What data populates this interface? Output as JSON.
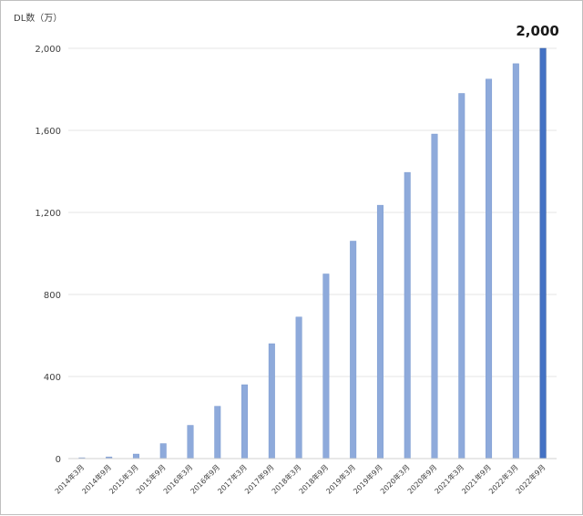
{
  "chart_data": {
    "type": "bar",
    "ylabel": "DL数（万）",
    "xlabel": "",
    "ylim": [
      0,
      2000
    ],
    "yticks": [
      0,
      400,
      800,
      1200,
      1600,
      2000
    ],
    "ytick_labels": [
      "0",
      "400",
      "800",
      "1,200",
      "1,600",
      "2,000"
    ],
    "grid": true,
    "categories": [
      "2014年3月",
      "2014年9月",
      "2015年3月",
      "2015年9月",
      "2016年3月",
      "2016年9月",
      "2017年3月",
      "2017年9月",
      "2018年3月",
      "2018年9月",
      "2019年3月",
      "2019年9月",
      "2020年3月",
      "2020年9月",
      "2021年3月",
      "2021年9月",
      "2022年3月",
      "2022年9月"
    ],
    "values": [
      4,
      8,
      22,
      73,
      162,
      255,
      360,
      560,
      690,
      900,
      1060,
      1235,
      1395,
      1582,
      1780,
      1850,
      1925,
      2000
    ],
    "bar_color": "#8eaadb",
    "highlight_color": "#4472c4",
    "highlight_index": 17,
    "annotation": "2,000"
  }
}
